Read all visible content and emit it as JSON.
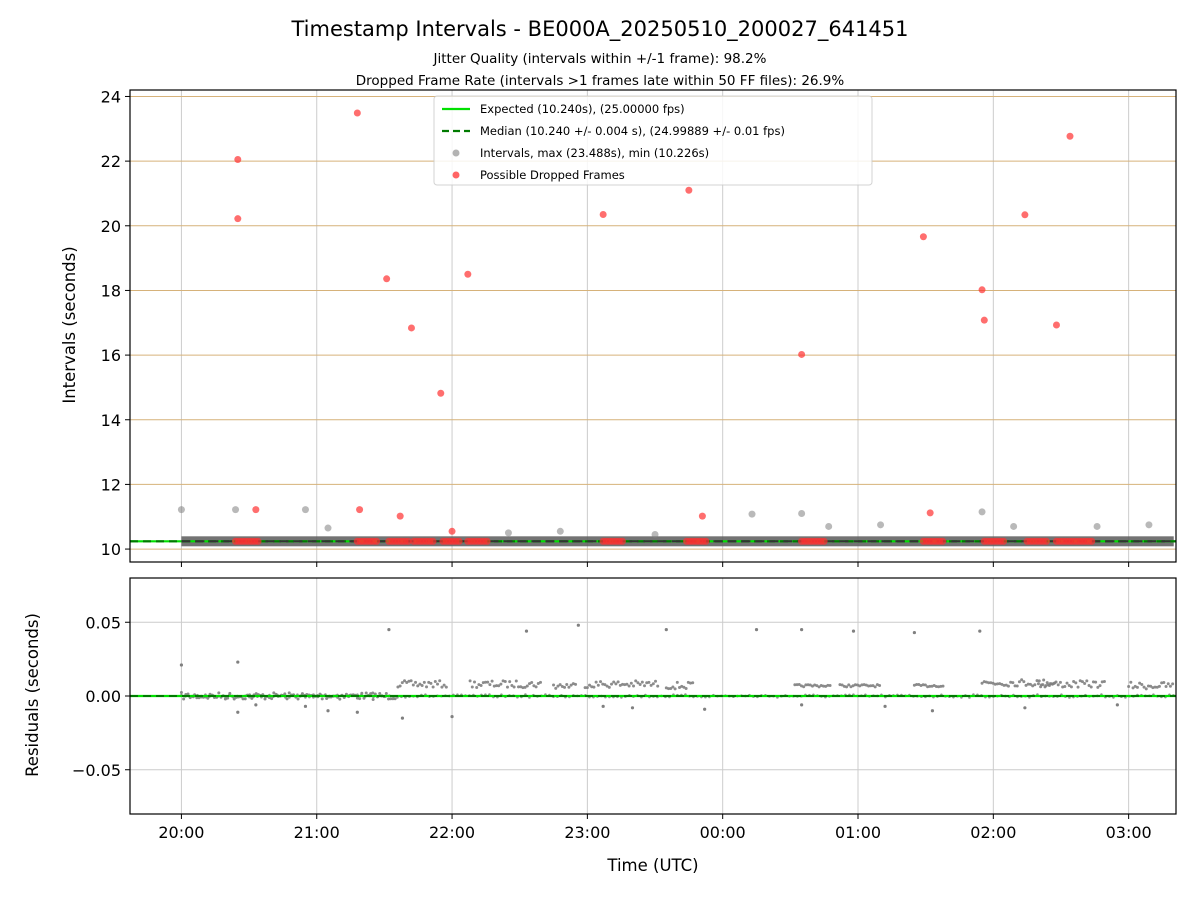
{
  "title": "Timestamp Intervals - BE000A_20250510_200027_641451",
  "subtitle1": "Jitter Quality (intervals within +/-1 frame): 98.2%",
  "subtitle2": "Dropped Frame Rate (intervals >1 frames late within 50 FF files): 26.9%",
  "colors": {
    "expected": "#00e000",
    "median": "#007a00",
    "intervals": "#808080",
    "dropped": "#ff3030",
    "hgrid_top": "#d6b27a",
    "grid": "#cccccc"
  },
  "chart_data": [
    {
      "type": "scatter",
      "ylabel": "Intervals (seconds)",
      "ylim": [
        9.6,
        24.2
      ],
      "xlim_hours": [
        19.62,
        27.35
      ],
      "yticks": [
        10,
        12,
        14,
        16,
        18,
        20,
        22,
        24
      ],
      "grid": true,
      "legend_position": "top-center",
      "expected_value": 10.24,
      "median_value": 10.24,
      "legend": [
        {
          "kind": "line",
          "label": "Expected (10.240s), (25.00000 fps)"
        },
        {
          "kind": "dashed",
          "label": "Median (10.240 +/- 0.004 s), (24.99889 +/- 0.01 fps)"
        },
        {
          "kind": "dot-gray",
          "label": "Intervals, max (23.488s), min (10.226s)"
        },
        {
          "kind": "dot-red",
          "label": "Possible Dropped Frames"
        }
      ],
      "interval_band": {
        "x_start": "20:00",
        "x_end": "03:20",
        "y": 10.24
      },
      "intervals_outliers": [
        {
          "x": "20:00",
          "y": 11.22
        },
        {
          "x": "20:24",
          "y": 11.22
        },
        {
          "x": "20:55",
          "y": 11.22
        },
        {
          "x": "21:05",
          "y": 10.65
        },
        {
          "x": "22:25",
          "y": 10.5
        },
        {
          "x": "22:48",
          "y": 10.55
        },
        {
          "x": "23:30",
          "y": 10.45
        },
        {
          "x": "00:13",
          "y": 11.08
        },
        {
          "x": "00:35",
          "y": 11.1
        },
        {
          "x": "00:47",
          "y": 10.7
        },
        {
          "x": "01:10",
          "y": 10.75
        },
        {
          "x": "01:55",
          "y": 11.15
        },
        {
          "x": "02:09",
          "y": 10.7
        },
        {
          "x": "02:46",
          "y": 10.7
        },
        {
          "x": "03:09",
          "y": 10.75
        }
      ],
      "dropped_frames": [
        {
          "x": "20:25",
          "y": 22.05
        },
        {
          "x": "20:25",
          "y": 20.22
        },
        {
          "x": "20:33",
          "y": 11.22
        },
        {
          "x": "21:18",
          "y": 23.488
        },
        {
          "x": "21:19",
          "y": 11.22
        },
        {
          "x": "21:31",
          "y": 18.36
        },
        {
          "x": "21:37",
          "y": 11.02
        },
        {
          "x": "21:42",
          "y": 16.84
        },
        {
          "x": "21:55",
          "y": 14.82
        },
        {
          "x": "22:00",
          "y": 10.55
        },
        {
          "x": "22:07",
          "y": 18.5
        },
        {
          "x": "23:07",
          "y": 20.35
        },
        {
          "x": "23:45",
          "y": 21.1
        },
        {
          "x": "23:51",
          "y": 11.02
        },
        {
          "x": "00:35",
          "y": 16.02
        },
        {
          "x": "01:29",
          "y": 19.66
        },
        {
          "x": "01:32",
          "y": 11.12
        },
        {
          "x": "01:55",
          "y": 18.02
        },
        {
          "x": "01:56",
          "y": 17.08
        },
        {
          "x": "02:14",
          "y": 20.34
        },
        {
          "x": "02:28",
          "y": 16.93
        },
        {
          "x": "02:34",
          "y": 22.77
        }
      ],
      "dropped_clusters": [
        {
          "x_start": "20:24",
          "x_end": "20:35",
          "y": 10.24
        },
        {
          "x_start": "21:18",
          "x_end": "21:27",
          "y": 10.24
        },
        {
          "x_start": "21:32",
          "x_end": "21:41",
          "y": 10.24
        },
        {
          "x_start": "21:43",
          "x_end": "21:52",
          "y": 10.24
        },
        {
          "x_start": "21:56",
          "x_end": "22:04",
          "y": 10.24
        },
        {
          "x_start": "22:07",
          "x_end": "22:16",
          "y": 10.24
        },
        {
          "x_start": "23:07",
          "x_end": "23:16",
          "y": 10.24
        },
        {
          "x_start": "23:44",
          "x_end": "23:53",
          "y": 10.24
        },
        {
          "x_start": "00:35",
          "x_end": "00:45",
          "y": 10.24
        },
        {
          "x_start": "01:29",
          "x_end": "01:38",
          "y": 10.24
        },
        {
          "x_start": "01:56",
          "x_end": "02:05",
          "y": 10.24
        },
        {
          "x_start": "02:15",
          "x_end": "02:24",
          "y": 10.24
        },
        {
          "x_start": "02:28",
          "x_end": "02:45",
          "y": 10.24
        }
      ]
    },
    {
      "type": "scatter",
      "xlabel": "Time (UTC)",
      "ylabel": "Residuals (seconds)",
      "ylim": [
        -0.08,
        0.08
      ],
      "yticks": [
        0.05,
        0.0,
        -0.05
      ],
      "ytick_labels": [
        "0.05",
        "0.00",
        "−0.05"
      ],
      "xticks": [
        "20:00",
        "21:00",
        "22:00",
        "23:00",
        "00:00",
        "01:00",
        "02:00",
        "03:00"
      ],
      "grid": true,
      "residual_segments": [
        {
          "x_start": "20:00",
          "x_end": "21:25",
          "y": 0.0
        },
        {
          "x_start": "21:25",
          "x_end": "21:35",
          "y": 0.0
        },
        {
          "x_start": "21:36",
          "x_end": "21:58",
          "y": 0.008
        },
        {
          "x_start": "22:08",
          "x_end": "22:40",
          "y": 0.008
        },
        {
          "x_start": "22:45",
          "x_end": "22:55",
          "y": 0.007
        },
        {
          "x_start": "22:59",
          "x_end": "23:32",
          "y": 0.008
        },
        {
          "x_start": "23:35",
          "x_end": "23:47",
          "y": 0.007
        },
        {
          "x_start": "00:32",
          "x_end": "00:48",
          "y": 0.007
        },
        {
          "x_start": "00:52",
          "x_end": "01:10",
          "y": 0.007
        },
        {
          "x_start": "01:25",
          "x_end": "01:38",
          "y": 0.007
        },
        {
          "x_start": "01:55",
          "x_end": "02:28",
          "y": 0.009
        },
        {
          "x_start": "02:20",
          "x_end": "02:50",
          "y": 0.008
        },
        {
          "x_start": "03:00",
          "x_end": "03:20",
          "y": 0.007
        }
      ],
      "residual_outliers": [
        {
          "x": "20:00",
          "y": 0.021
        },
        {
          "x": "20:25",
          "y": 0.023
        },
        {
          "x": "20:25",
          "y": -0.011
        },
        {
          "x": "20:33",
          "y": -0.006
        },
        {
          "x": "20:55",
          "y": -0.007
        },
        {
          "x": "21:05",
          "y": -0.01
        },
        {
          "x": "21:18",
          "y": -0.011
        },
        {
          "x": "21:32",
          "y": 0.045
        },
        {
          "x": "21:38",
          "y": -0.015
        },
        {
          "x": "22:00",
          "y": -0.014
        },
        {
          "x": "22:33",
          "y": 0.044
        },
        {
          "x": "22:56",
          "y": 0.048
        },
        {
          "x": "23:07",
          "y": -0.007
        },
        {
          "x": "23:20",
          "y": -0.008
        },
        {
          "x": "23:35",
          "y": 0.045
        },
        {
          "x": "23:52",
          "y": -0.009
        },
        {
          "x": "00:15",
          "y": 0.045
        },
        {
          "x": "00:35",
          "y": 0.045
        },
        {
          "x": "00:35",
          "y": -0.006
        },
        {
          "x": "00:58",
          "y": 0.044
        },
        {
          "x": "01:12",
          "y": -0.007
        },
        {
          "x": "01:25",
          "y": 0.043
        },
        {
          "x": "01:33",
          "y": -0.01
        },
        {
          "x": "01:54",
          "y": 0.044
        },
        {
          "x": "02:14",
          "y": -0.008
        },
        {
          "x": "02:55",
          "y": -0.006
        }
      ]
    }
  ]
}
